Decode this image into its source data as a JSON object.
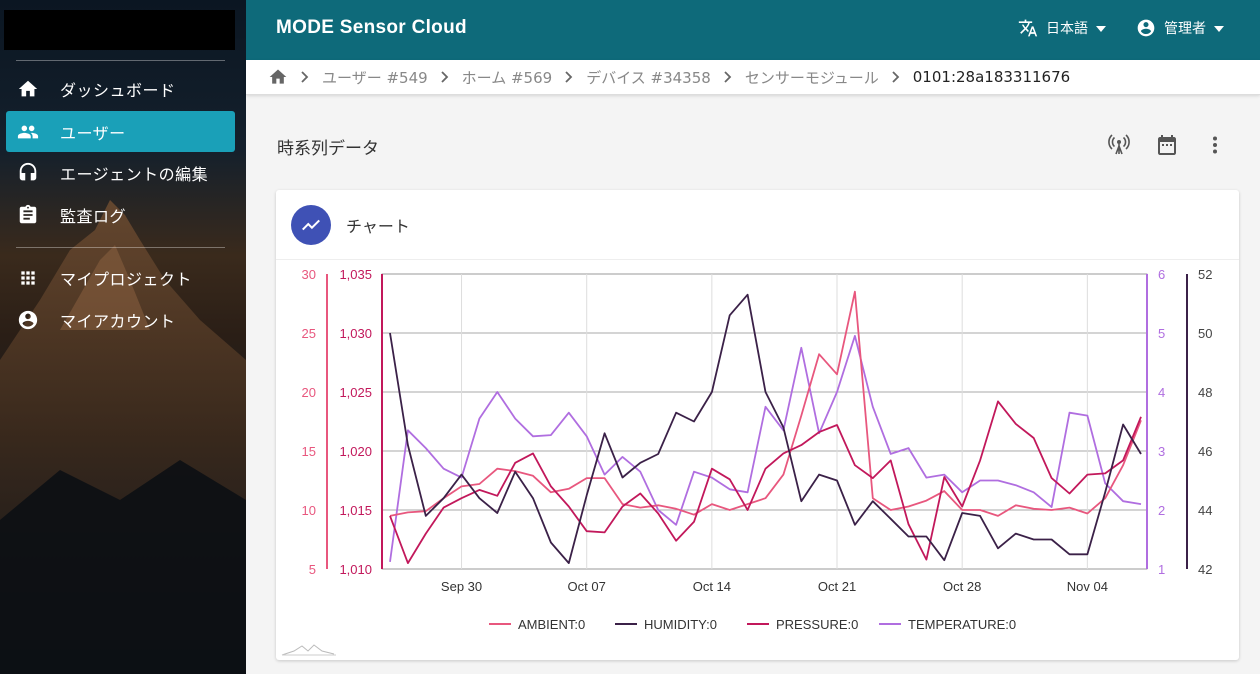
{
  "app": {
    "title": "MODE Sensor Cloud"
  },
  "topbar": {
    "language": "日本語",
    "user": "管理者"
  },
  "sidebar": {
    "items": [
      {
        "label": "ダッシュボード",
        "icon": "home-icon"
      },
      {
        "label": "ユーザー",
        "icon": "people-icon",
        "active": true
      },
      {
        "label": "エージェントの編集",
        "icon": "headset-icon"
      },
      {
        "label": "監査ログ",
        "icon": "clipboard-icon"
      },
      {
        "label": "マイプロジェクト",
        "icon": "apps-grid-icon"
      },
      {
        "label": "マイアカウント",
        "icon": "account-circle-icon"
      }
    ]
  },
  "breadcrumb": {
    "items": [
      "ユーザー #549",
      "ホーム #569",
      "デバイス #34358",
      "センサーモジュール",
      "0101:28a183311676"
    ]
  },
  "section": {
    "title": "時系列データ",
    "actions": [
      "antenna-icon",
      "calendar-icon",
      "more-vert-icon"
    ]
  },
  "card": {
    "title": "チャート"
  },
  "colors": {
    "ambient": "#e8577e",
    "humidity": "#3b2148",
    "pressure": "#c2185b",
    "temperature": "#b06ee0",
    "topbar": "#0e6a7a",
    "active_nav": "#1aa0b8",
    "avatar": "#3f51b5"
  },
  "chart_data": {
    "type": "line",
    "x": [
      "Sep 26",
      "Sep 27",
      "Sep 28",
      "Sep 29",
      "Sep 30",
      "Oct 01",
      "Oct 02",
      "Oct 03",
      "Oct 04",
      "Oct 05",
      "Oct 06",
      "Oct 07",
      "Oct 08",
      "Oct 09",
      "Oct 10",
      "Oct 11",
      "Oct 12",
      "Oct 13",
      "Oct 14",
      "Oct 15",
      "Oct 16",
      "Oct 17",
      "Oct 18",
      "Oct 19",
      "Oct 20",
      "Oct 21",
      "Oct 22",
      "Oct 23",
      "Oct 24",
      "Oct 25",
      "Oct 26",
      "Oct 27",
      "Oct 28",
      "Oct 29",
      "Oct 30",
      "Oct 31",
      "Nov 01",
      "Nov 02",
      "Nov 03",
      "Nov 04",
      "Nov 05",
      "Nov 06",
      "Nov 07"
    ],
    "x_ticks": [
      "Sep 30",
      "Oct 07",
      "Oct 14",
      "Oct 21",
      "Oct 28",
      "Nov 04"
    ],
    "axes": {
      "ambient": {
        "ticks": [
          "30",
          "25",
          "20",
          "15",
          "10",
          "5"
        ],
        "range": [
          5,
          30
        ]
      },
      "pressure": {
        "ticks": [
          "1,035",
          "1,030",
          "1,025",
          "1,020",
          "1,015",
          "1,010"
        ],
        "range": [
          1010,
          1035
        ]
      },
      "temperature": {
        "ticks": [
          "6",
          "5",
          "4",
          "3",
          "2",
          "1"
        ],
        "range": [
          1,
          6
        ]
      },
      "humidity": {
        "ticks": [
          "52",
          "50",
          "48",
          "46",
          "44",
          "42"
        ],
        "range": [
          42,
          52
        ]
      }
    },
    "series": [
      {
        "name": "AMBIENT:0",
        "axis": "ambient",
        "values": [
          9.5,
          9.8,
          9.9,
          11,
          12,
          12.2,
          13.5,
          13.3,
          12.9,
          11.5,
          11.8,
          12.7,
          12.7,
          10.5,
          10.2,
          10.4,
          10.1,
          9.6,
          10.5,
          10,
          10.5,
          11,
          13,
          18,
          23.2,
          21.5,
          28.5,
          11,
          10,
          10.3,
          10.8,
          11.6,
          10,
          10,
          9.5,
          10.4,
          10.1,
          10,
          10.2,
          9.7,
          11,
          13.8,
          17.6
        ]
      },
      {
        "name": "HUMIDITY:0",
        "axis": "humidity",
        "values": [
          50.0,
          46.2,
          43.8,
          44.4,
          45.2,
          44.4,
          43.9,
          45.3,
          44.4,
          42.9,
          42.2,
          44.5,
          46.6,
          45.1,
          45.6,
          45.9,
          47.3,
          47.0,
          48.0,
          50.6,
          51.3,
          48.0,
          46.8,
          44.3,
          45.2,
          45.0,
          43.5,
          44.3,
          43.7,
          43.1,
          43.1,
          42.3,
          43.9,
          43.8,
          42.7,
          43.2,
          43.0,
          43.0,
          42.5,
          42.5,
          44.6,
          46.9,
          45.9
        ]
      },
      {
        "name": "PRESSURE:0",
        "axis": "pressure",
        "values": [
          1014.5,
          1010.5,
          1013,
          1015.2,
          1016,
          1016.7,
          1016.2,
          1019,
          1019.8,
          1017,
          1015.3,
          1013.2,
          1013.1,
          1015.3,
          1016.4,
          1014.7,
          1012.4,
          1014,
          1018.5,
          1017.6,
          1015,
          1018.5,
          1019.8,
          1020.5,
          1021.6,
          1022.2,
          1018.8,
          1017.7,
          1019.2,
          1013.8,
          1010.8,
          1017.8,
          1015.3,
          1019.2,
          1024.2,
          1022.3,
          1021.1,
          1017.7,
          1016.4,
          1018,
          1018.1,
          1019.2,
          1022.9
        ]
      },
      {
        "name": "TEMPERATURE:0",
        "axis": "temperature",
        "values": [
          1.12,
          3.35,
          3.05,
          2.7,
          2.55,
          3.55,
          4.0,
          3.55,
          3.25,
          3.27,
          3.65,
          3.25,
          2.6,
          2.9,
          2.65,
          2.0,
          1.75,
          2.65,
          2.55,
          2.35,
          2.3,
          3.75,
          3.35,
          4.75,
          3.3,
          4.0,
          4.95,
          3.75,
          2.95,
          3.05,
          2.55,
          2.6,
          2.3,
          2.5,
          2.5,
          2.42,
          2.3,
          2.05,
          3.65,
          3.6,
          2.45,
          2.15,
          2.1
        ]
      }
    ]
  },
  "legend": [
    "AMBIENT:0",
    "HUMIDITY:0",
    "PRESSURE:0",
    "TEMPERATURE:0"
  ]
}
